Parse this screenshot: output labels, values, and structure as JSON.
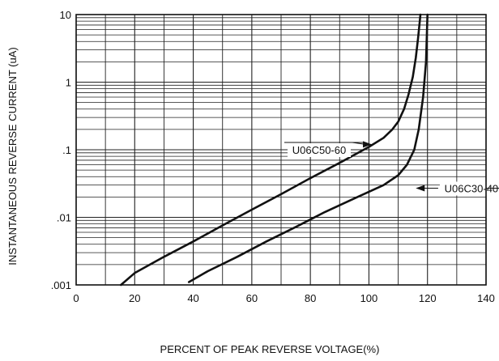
{
  "chart_data": {
    "type": "line",
    "title": "",
    "xlabel": "PERCENT OF PEAK REVERSE VOLTAGE(%)",
    "ylabel": "INSTANTANEOUS REVERSE CURRENT (uA)",
    "xlim": [
      0,
      140
    ],
    "ylim": [
      0.001,
      10
    ],
    "y_scale": "log",
    "grid": true,
    "legend": "none",
    "x_ticks": [
      {
        "value": 0,
        "label": "0"
      },
      {
        "value": 20,
        "label": "20"
      },
      {
        "value": 40,
        "label": "40"
      },
      {
        "value": 60,
        "label": "60"
      },
      {
        "value": 80,
        "label": "80"
      },
      {
        "value": 100,
        "label": "100"
      },
      {
        "value": 120,
        "label": "120"
      },
      {
        "value": 140,
        "label": "140"
      }
    ],
    "y_ticks": [
      {
        "value": 10,
        "label": "10"
      },
      {
        "value": 1,
        "label": "1"
      },
      {
        "value": 0.1,
        "label": ".1"
      },
      {
        "value": 0.01,
        "label": ".01"
      },
      {
        "value": 0.001,
        "label": ".001"
      }
    ],
    "series": [
      {
        "name": "U06C50-60",
        "x": [
          15.3,
          20,
          30,
          40,
          50,
          60,
          70,
          80,
          90,
          100,
          105,
          108,
          110,
          112,
          113.5,
          115,
          116,
          116.8,
          117.3,
          117.6
        ],
        "y": [
          0.001,
          0.0015,
          0.0026,
          0.0044,
          0.0076,
          0.013,
          0.022,
          0.038,
          0.064,
          0.11,
          0.15,
          0.2,
          0.26,
          0.4,
          0.65,
          1.2,
          2.3,
          4.5,
          7.5,
          10
        ]
      },
      {
        "name": "U06C30-40",
        "x": [
          38.5,
          45,
          55,
          65,
          75,
          85,
          95,
          105,
          110,
          113,
          115.5,
          117,
          118.5,
          119.5,
          120
        ],
        "y": [
          0.0011,
          0.0016,
          0.0026,
          0.0044,
          0.0072,
          0.012,
          0.019,
          0.03,
          0.042,
          0.06,
          0.1,
          0.2,
          0.6,
          2,
          10
        ]
      }
    ],
    "annotations": [
      {
        "text": "U06C50-60",
        "target_series": "U06C50-60",
        "arrow_to": {
          "x": 101,
          "y": 0.12
        },
        "label_at": {
          "x": 83,
          "y": 0.1
        }
      },
      {
        "text": "U06C30-40",
        "target_series": "U06C30-40",
        "arrow_to": {
          "x": 116,
          "y": 0.027
        },
        "label_at": {
          "x": 135,
          "y": 0.027
        }
      }
    ]
  }
}
